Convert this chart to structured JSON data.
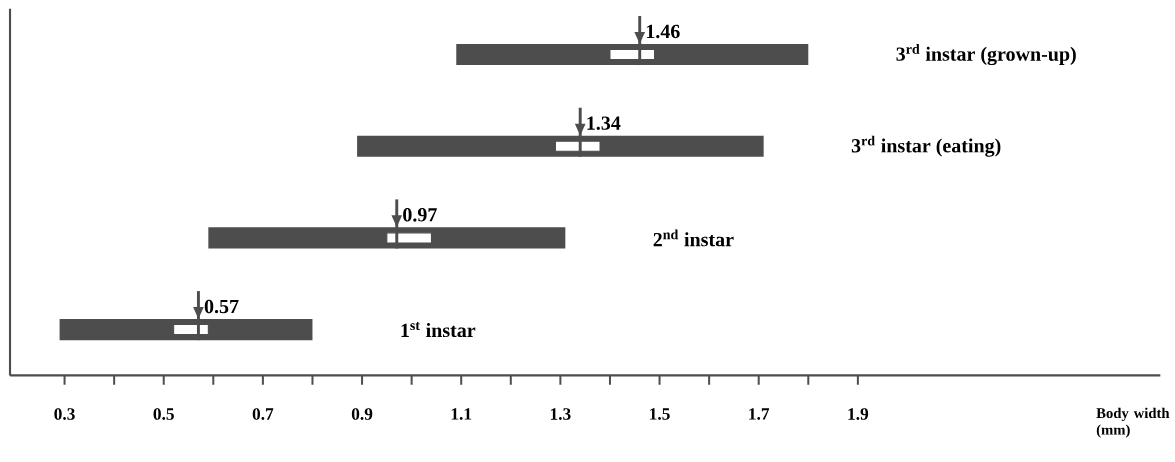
{
  "chart_data": {
    "type": "bar",
    "orientation": "horizontal",
    "categories": [
      "3$^{rd}$ instar (grown-up)",
      "3$^{rd}$ instar (eating)",
      "2$^{nd}$ instar",
      "1$^{st}$ instar"
    ],
    "series": [
      {
        "color": "#4d4d4d",
        "base": [
          1.09,
          0.89,
          0.59,
          0.29
        ],
        "values": [
          0.71,
          0.82,
          0.72,
          0.51
        ]
      },
      {
        "color": "#ffffff",
        "base": [
          1.4,
          1.29,
          0.95,
          0.52
        ],
        "values": [
          0.09,
          0.09,
          0.09,
          0.07
        ]
      },
      {
        "type": "scatter",
        "color": "#4d4d4d",
        "values": [
          1.46,
          1.34,
          0.97,
          0.57
        ],
        "value_labels": [
          "1.46",
          "1.34",
          "0.97",
          "0.57"
        ]
      }
    ],
    "xlabel": "Body width (mm)",
    "xlim": [
      0.19,
      2.51
    ],
    "xticks": [
      0.3,
      {
        "value": 0.4,
        "label": null
      },
      0.5,
      {
        "value": 0.6,
        "label": null
      },
      0.7,
      {
        "value": 0.8,
        "label": null
      },
      0.9,
      {
        "value": 1.0,
        "label": null
      },
      1.1,
      {
        "value": 1.2,
        "label": null
      },
      1.3,
      {
        "value": 1.4,
        "label": null
      },
      1.5,
      {
        "value": 1.6,
        "label": null
      },
      1.7,
      {
        "value": 1.8,
        "label": null
      },
      1.9
    ]
  }
}
